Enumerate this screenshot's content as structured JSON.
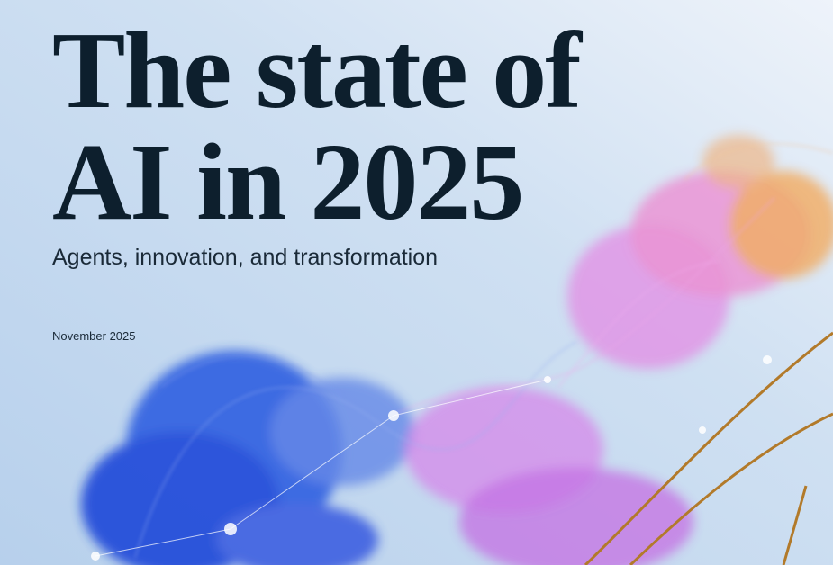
{
  "cover": {
    "title_lines": [
      "The state of",
      "AI in 2025"
    ],
    "subtitle": "Agents, innovation, and transformation",
    "date": "November 2025"
  }
}
